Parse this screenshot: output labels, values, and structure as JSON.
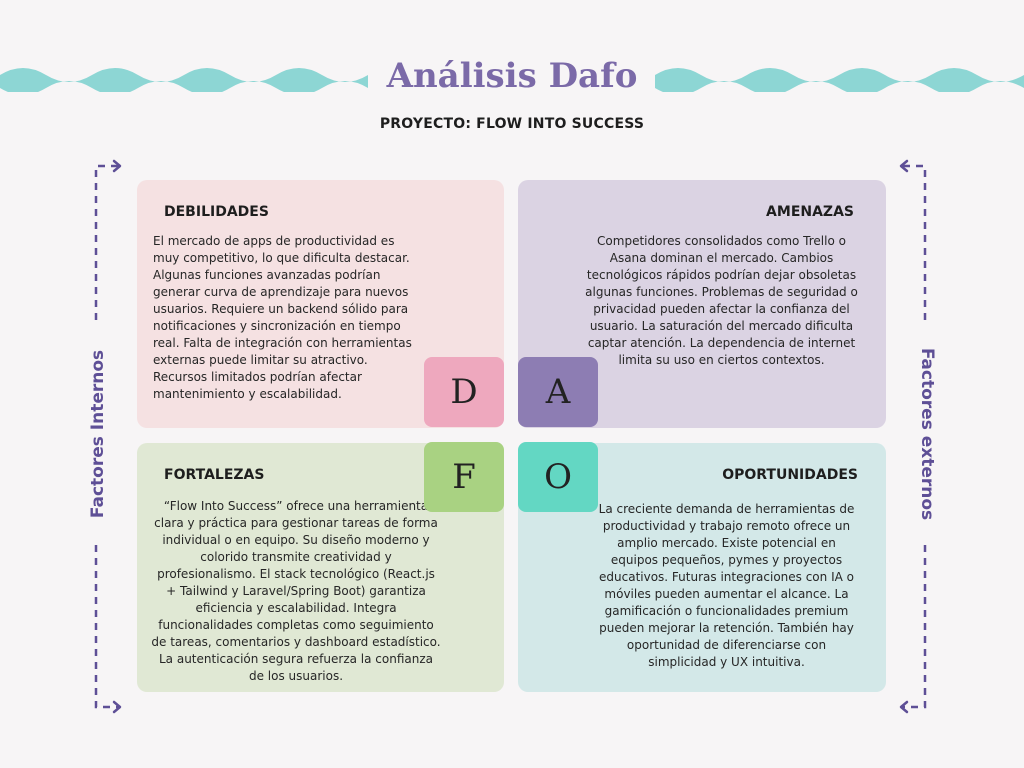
{
  "title": "Análisis Dafo",
  "subtitle": "PROYECTO: FLOW INTO SUCCESS",
  "side_labels": {
    "left": "Factores Internos",
    "right": "Factores externos"
  },
  "quadrants": {
    "debilidades": {
      "title": "DEBILIDADES",
      "letter": "D",
      "text": "El mercado de apps de productividad es muy competitivo, lo que dificulta destacar. Algunas funciones avanzadas podrían generar curva de aprendizaje para nuevos usuarios. Requiere un backend sólido para notificaciones y sincronización en tiempo real. Falta de integración con herramientas externas puede limitar su atractivo. Recursos limitados podrían afectar mantenimiento y escalabilidad."
    },
    "amenazas": {
      "title": "AMENAZAS",
      "letter": "A",
      "text": "Competidores consolidados como Trello o Asana dominan el mercado. Cambios tecnológicos rápidos podrían dejar obsoletas algunas funciones. Problemas de seguridad o privacidad pueden afectar la confianza del usuario. La saturación del mercado dificulta captar atención. La dependencia de internet limita su uso en ciertos contextos."
    },
    "fortalezas": {
      "title": "FORTALEZAS",
      "letter": "F",
      "text": "“Flow Into Success” ofrece una herramienta clara y práctica para gestionar tareas de forma individual o en equipo. Su diseño moderno y colorido transmite creatividad y profesionalismo. El stack tecnológico (React.js + Tailwind y Laravel/Spring Boot) garantiza eficiencia y escalabilidad. Integra funcionalidades completas como seguimiento de tareas, comentarios y dashboard estadístico. La autenticación segura refuerza la confianza de los usuarios."
    },
    "oportunidades": {
      "title": "OPORTUNIDADES",
      "letter": "O",
      "text": "La creciente demanda de herramientas de productividad y trabajo remoto ofrece un amplio mercado. Existe potencial en equipos pequeños, pymes y proyectos educativos. Futuras integraciones con IA o móviles pueden aumentar el alcance. La gamificación o funcionalidades premium pueden mejorar la retención. También hay oportunidad de diferenciarse con simplicidad y UX intuitiva."
    }
  },
  "colors": {
    "title": "#7b6aa8",
    "wave": "#8dd6d4",
    "side": "#5e4f96",
    "debilidades_bg": "#f5e1e2",
    "amenazas_bg": "#dbd3e3",
    "fortalezas_bg": "#e0e8d4",
    "oportunidades_bg": "#d3e8e8",
    "letter_d": "#eea8be",
    "letter_a": "#8d7db3",
    "letter_f": "#a9d282",
    "letter_o": "#63d7c3"
  }
}
